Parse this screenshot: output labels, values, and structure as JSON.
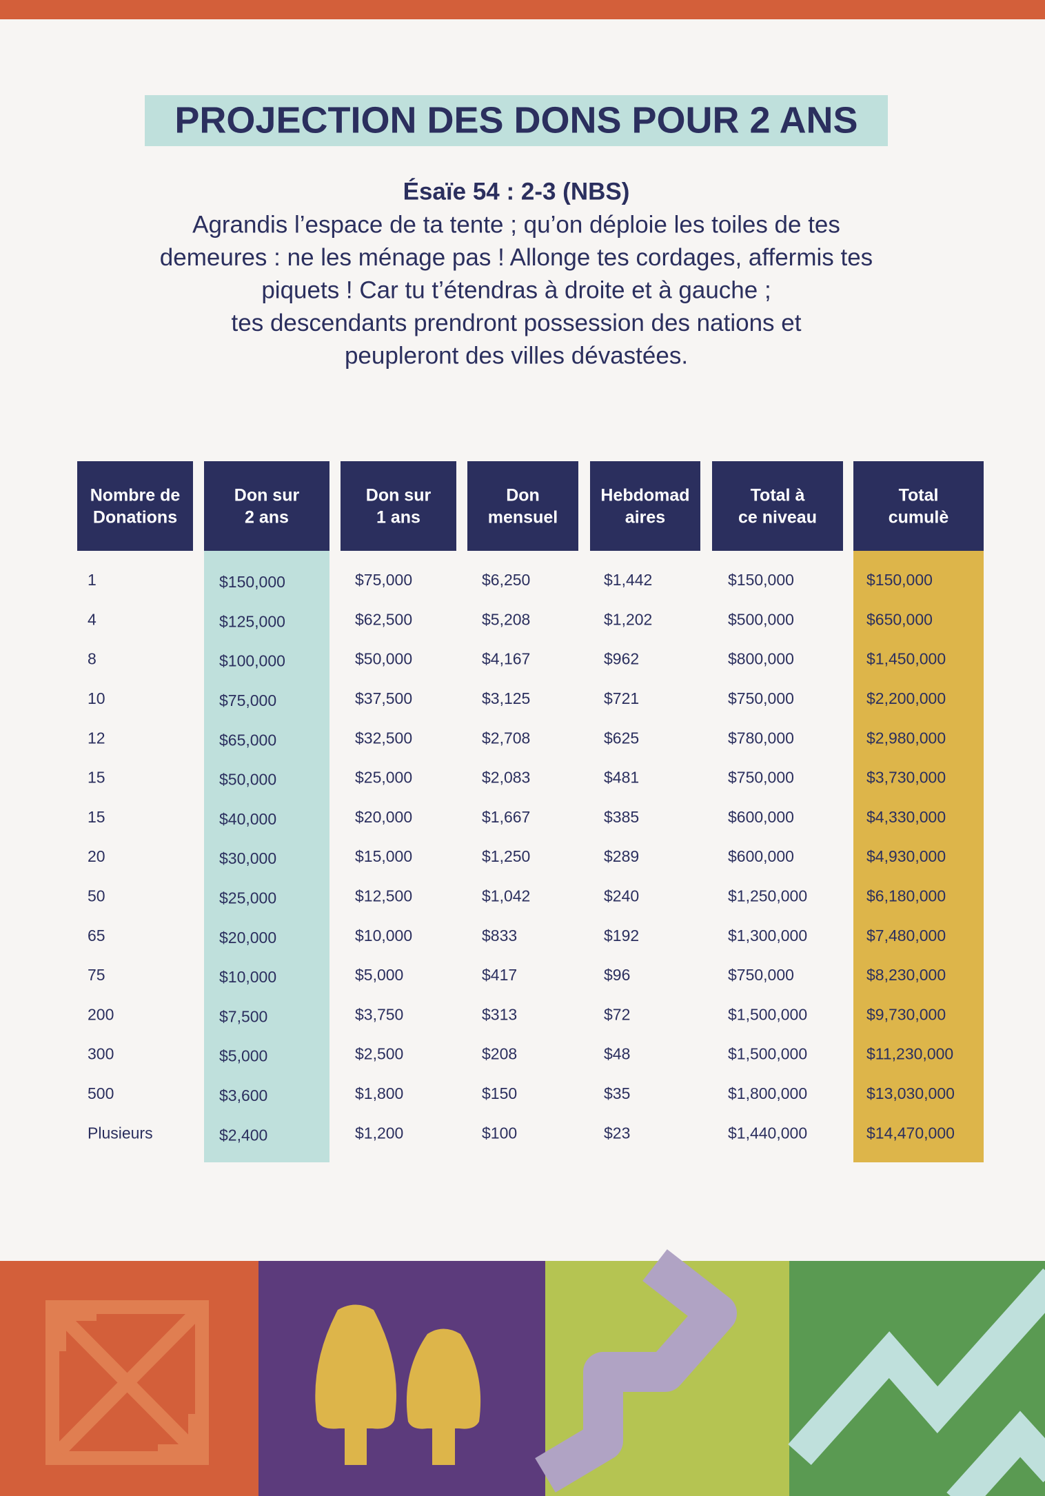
{
  "header": {
    "title": "PROJECTION DES DONS POUR 2 ANS",
    "reference": "Ésaïe 54 : 2-3 (NBS)",
    "verse_lines": [
      "Agrandis l’espace de ta tente ; qu’on déploie les toiles de tes",
      "demeures : ne les ménage pas ! Allonge tes cordages, affermis tes",
      "piquets ! Car tu t’étendras à droite et à gauche ;",
      "tes descendants prendront possession des nations et",
      "peupleront des villes dévastées."
    ]
  },
  "table": {
    "headers": [
      [
        "Nombre de",
        "Donations"
      ],
      [
        "Don sur",
        "2 ans"
      ],
      [
        "Don sur",
        "1 ans"
      ],
      [
        "Don",
        "mensuel"
      ],
      [
        "Hebdomad",
        "aires"
      ],
      [
        "Total à",
        "ce niveau"
      ],
      [
        "Total",
        "cumulè"
      ]
    ],
    "rows": [
      [
        "1",
        "$150,000",
        "$75,000",
        "$6,250",
        "$1,442",
        "$150,000",
        "$150,000"
      ],
      [
        "4",
        "$125,000",
        "$62,500",
        "$5,208",
        "$1,202",
        "$500,000",
        "$650,000"
      ],
      [
        "8",
        "$100,000",
        "$50,000",
        "$4,167",
        "$962",
        "$800,000",
        "$1,450,000"
      ],
      [
        "10",
        "$75,000",
        "$37,500",
        "$3,125",
        "$721",
        "$750,000",
        "$2,200,000"
      ],
      [
        "12",
        "$65,000",
        "$32,500",
        "$2,708",
        "$625",
        "$780,000",
        "$2,980,000"
      ],
      [
        "15",
        "$50,000",
        "$25,000",
        "$2,083",
        "$481",
        "$750,000",
        "$3,730,000"
      ],
      [
        "15",
        "$40,000",
        "$20,000",
        "$1,667",
        "$385",
        "$600,000",
        "$4,330,000"
      ],
      [
        "20",
        "$30,000",
        "$15,000",
        "$1,250",
        "$289",
        "$600,000",
        "$4,930,000"
      ],
      [
        "50",
        "$25,000",
        "$12,500",
        "$1,042",
        "$240",
        "$1,250,000",
        "$6,180,000"
      ],
      [
        "65",
        "$20,000",
        "$10,000",
        "$833",
        "$192",
        "$1,300,000",
        "$7,480,000"
      ],
      [
        "75",
        "$10,000",
        "$5,000",
        "$417",
        "$96",
        "$750,000",
        "$8,230,000"
      ],
      [
        "200",
        "$7,500",
        "$3,750",
        "$313",
        "$72",
        "$1,500,000",
        "$9,730,000"
      ],
      [
        "300",
        "$5,000",
        "$2,500",
        "$208",
        "$48",
        "$1,500,000",
        "$11,230,000"
      ],
      [
        "500",
        "$3,600",
        "$1,800",
        "$150",
        "$35",
        "$1,800,000",
        "$13,030,000"
      ],
      [
        "Plusieurs",
        "$2,400",
        "$1,200",
        "$100",
        "$23",
        "$1,440,000",
        "$14,470,000"
      ]
    ]
  }
}
